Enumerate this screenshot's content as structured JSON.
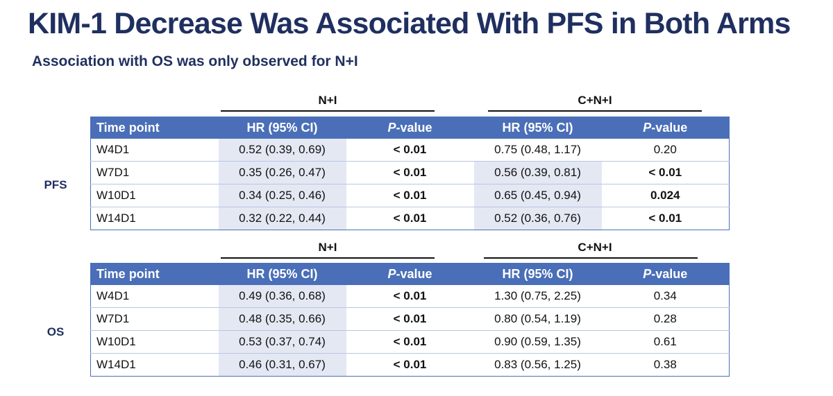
{
  "title": "KIM-1 Decrease Was Associated With PFS in Both Arms",
  "subtitle": "Association with OS was only observed for N+I",
  "headers": {
    "time_point": "Time point",
    "hr": "HR (95% CI)",
    "p_italic": "P",
    "p_rest": "-value"
  },
  "arms": {
    "left": "N+I",
    "right": "C+N+I"
  },
  "pfs": {
    "label": "PFS",
    "rows": [
      {
        "tp": "W4D1",
        "hr1": "0.52 (0.39, 0.69)",
        "p1": "< 0.01",
        "hr2": "0.75 (0.48, 1.17)",
        "p2": "0.20"
      },
      {
        "tp": "W7D1",
        "hr1": "0.35 (0.26, 0.47)",
        "p1": "< 0.01",
        "hr2": "0.56 (0.39, 0.81)",
        "p2": "< 0.01"
      },
      {
        "tp": "W10D1",
        "hr1": "0.34 (0.25, 0.46)",
        "p1": "< 0.01",
        "hr2": "0.65 (0.45, 0.94)",
        "p2": "0.024"
      },
      {
        "tp": "W14D1",
        "hr1": "0.32 (0.22, 0.44)",
        "p1": "< 0.01",
        "hr2": "0.52 (0.36, 0.76)",
        "p2": "< 0.01"
      }
    ]
  },
  "os": {
    "label": "OS",
    "rows": [
      {
        "tp": "W4D1",
        "hr1": "0.49 (0.36, 0.68)",
        "p1": "< 0.01",
        "hr2": "1.30 (0.75, 2.25)",
        "p2": "0.34"
      },
      {
        "tp": "W7D1",
        "hr1": "0.48 (0.35, 0.66)",
        "p1": "< 0.01",
        "hr2": "0.80 (0.54, 1.19)",
        "p2": "0.28"
      },
      {
        "tp": "W10D1",
        "hr1": "0.53 (0.37, 0.74)",
        "p1": "< 0.01",
        "hr2": "0.90 (0.59, 1.35)",
        "p2": "0.61"
      },
      {
        "tp": "W14D1",
        "hr1": "0.46 (0.31, 0.67)",
        "p1": "< 0.01",
        "hr2": "0.83 (0.56, 1.25)",
        "p2": "0.38"
      }
    ]
  },
  "colors": {
    "title": "#1f2f5f",
    "header_bg": "#4a6fb8",
    "shade": "#e4e8f3"
  }
}
